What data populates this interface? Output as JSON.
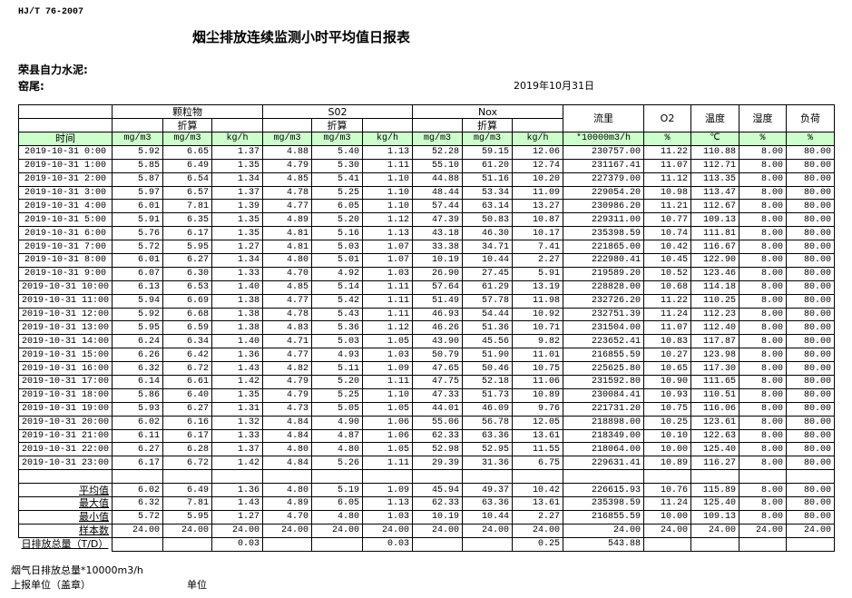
{
  "header": {
    "standard": "HJ/T  76-2007",
    "title": "烟尘排放连续监测小时平均值日报表",
    "company": "荣县自力水泥:",
    "kiln": "窑尾:",
    "date": "2019年10月31日"
  },
  "table": {
    "groups": {
      "particulate": "颗粒物",
      "so2": "S02",
      "nox": "Nox",
      "flow": "流里",
      "o2": "O2",
      "temp": "温度",
      "humidity": "湿度",
      "load": "负荷"
    },
    "converted": "折算",
    "time_label": "时间",
    "units": [
      "mg/m3",
      "mg/m3",
      "kg/h",
      "mg/m3",
      "mg/m3",
      "kg/h",
      "mg/m3",
      "mg/m3",
      "kg/h",
      "*10000m3/h",
      "%",
      "℃",
      "%",
      "%"
    ],
    "rows": [
      [
        "2019-10-31 0:00",
        "5.92",
        "6.65",
        "1.37",
        "4.88",
        "5.40",
        "1.13",
        "52.28",
        "59.15",
        "12.06",
        "230757.00",
        "11.22",
        "110.88",
        "8.00",
        "80.00"
      ],
      [
        "2019-10-31 1:00",
        "5.85",
        "6.49",
        "1.35",
        "4.79",
        "5.30",
        "1.11",
        "55.10",
        "61.20",
        "12.74",
        "231167.41",
        "11.07",
        "112.71",
        "8.00",
        "80.00"
      ],
      [
        "2019-10-31 2:00",
        "5.87",
        "6.54",
        "1.34",
        "4.85",
        "5.41",
        "1.10",
        "44.88",
        "51.16",
        "10.20",
        "227379.00",
        "11.12",
        "113.35",
        "8.00",
        "80.00"
      ],
      [
        "2019-10-31 3:00",
        "5.97",
        "6.57",
        "1.37",
        "4.78",
        "5.25",
        "1.10",
        "48.44",
        "53.34",
        "11.09",
        "229054.20",
        "10.98",
        "113.47",
        "8.00",
        "80.00"
      ],
      [
        "2019-10-31 4:00",
        "6.01",
        "7.81",
        "1.39",
        "4.77",
        "6.05",
        "1.10",
        "57.44",
        "63.14",
        "13.27",
        "230986.20",
        "11.21",
        "112.67",
        "8.00",
        "80.00"
      ],
      [
        "2019-10-31 5:00",
        "5.91",
        "6.35",
        "1.35",
        "4.89",
        "5.20",
        "1.12",
        "47.39",
        "50.83",
        "10.87",
        "229311.00",
        "10.77",
        "109.13",
        "8.00",
        "80.00"
      ],
      [
        "2019-10-31 6:00",
        "5.76",
        "6.17",
        "1.35",
        "4.81",
        "5.16",
        "1.13",
        "43.18",
        "46.30",
        "10.17",
        "235398.59",
        "10.74",
        "111.81",
        "8.00",
        "80.00"
      ],
      [
        "2019-10-31 7:00",
        "5.72",
        "5.95",
        "1.27",
        "4.81",
        "5.03",
        "1.07",
        "33.38",
        "34.71",
        "7.41",
        "221865.00",
        "10.42",
        "116.67",
        "8.00",
        "80.00"
      ],
      [
        "2019-10-31 8:00",
        "6.01",
        "6.27",
        "1.34",
        "4.80",
        "5.01",
        "1.07",
        "10.19",
        "10.44",
        "2.27",
        "222980.41",
        "10.45",
        "122.90",
        "8.00",
        "80.00"
      ],
      [
        "2019-10-31 9:00",
        "6.07",
        "6.30",
        "1.33",
        "4.70",
        "4.92",
        "1.03",
        "26.90",
        "27.45",
        "5.91",
        "219589.20",
        "10.52",
        "123.46",
        "8.00",
        "80.00"
      ],
      [
        "2019-10-31 10:00",
        "6.13",
        "6.53",
        "1.40",
        "4.85",
        "5.14",
        "1.11",
        "57.64",
        "61.29",
        "13.19",
        "228828.00",
        "10.68",
        "114.18",
        "8.00",
        "80.00"
      ],
      [
        "2019-10-31 11:00",
        "5.94",
        "6.69",
        "1.38",
        "4.77",
        "5.42",
        "1.11",
        "51.49",
        "57.78",
        "11.98",
        "232726.20",
        "11.22",
        "110.25",
        "8.00",
        "80.00"
      ],
      [
        "2019-10-31 12:00",
        "5.92",
        "6.68",
        "1.38",
        "4.78",
        "5.43",
        "1.11",
        "46.93",
        "54.44",
        "10.92",
        "232751.39",
        "11.24",
        "112.23",
        "8.00",
        "80.00"
      ],
      [
        "2019-10-31 13:00",
        "5.95",
        "6.59",
        "1.38",
        "4.83",
        "5.36",
        "1.12",
        "46.26",
        "51.36",
        "10.71",
        "231504.00",
        "11.07",
        "112.40",
        "8.00",
        "80.00"
      ],
      [
        "2019-10-31 14:00",
        "6.24",
        "6.34",
        "1.40",
        "4.71",
        "5.03",
        "1.05",
        "43.90",
        "45.56",
        "9.82",
        "223652.41",
        "10.83",
        "117.87",
        "8.00",
        "80.00"
      ],
      [
        "2019-10-31 15:00",
        "6.26",
        "6.42",
        "1.36",
        "4.77",
        "4.93",
        "1.03",
        "50.79",
        "51.90",
        "11.01",
        "216855.59",
        "10.27",
        "123.98",
        "8.00",
        "80.00"
      ],
      [
        "2019-10-31 16:00",
        "6.32",
        "6.72",
        "1.43",
        "4.82",
        "5.11",
        "1.09",
        "47.65",
        "50.46",
        "10.75",
        "225625.80",
        "10.65",
        "117.30",
        "8.00",
        "80.00"
      ],
      [
        "2019-10-31 17:00",
        "6.14",
        "6.61",
        "1.42",
        "4.79",
        "5.20",
        "1.11",
        "47.75",
        "52.18",
        "11.06",
        "231592.80",
        "10.90",
        "111.65",
        "8.00",
        "80.00"
      ],
      [
        "2019-10-31 18:00",
        "5.86",
        "6.40",
        "1.35",
        "4.79",
        "5.25",
        "1.10",
        "47.33",
        "51.73",
        "10.89",
        "230084.41",
        "10.93",
        "110.51",
        "8.00",
        "80.00"
      ],
      [
        "2019-10-31 19:00",
        "5.93",
        "6.27",
        "1.31",
        "4.73",
        "5.05",
        "1.05",
        "44.01",
        "46.09",
        "9.76",
        "221731.20",
        "10.75",
        "116.06",
        "8.00",
        "80.00"
      ],
      [
        "2019-10-31 20:00",
        "6.02",
        "6.16",
        "1.32",
        "4.84",
        "4.90",
        "1.06",
        "55.06",
        "56.78",
        "12.05",
        "218898.00",
        "10.25",
        "123.61",
        "8.00",
        "80.00"
      ],
      [
        "2019-10-31 21:00",
        "6.11",
        "6.17",
        "1.33",
        "4.84",
        "4.87",
        "1.06",
        "62.33",
        "63.36",
        "13.61",
        "218349.00",
        "10.10",
        "122.63",
        "8.00",
        "80.00"
      ],
      [
        "2019-10-31 22:00",
        "6.27",
        "6.28",
        "1.37",
        "4.80",
        "4.80",
        "1.05",
        "52.98",
        "52.95",
        "11.55",
        "218064.00",
        "10.00",
        "125.40",
        "8.00",
        "80.00"
      ],
      [
        "2019-10-31 23:00",
        "6.17",
        "6.72",
        "1.42",
        "4.84",
        "5.26",
        "1.11",
        "29.39",
        "31.36",
        "6.75",
        "229631.41",
        "10.89",
        "116.27",
        "8.00",
        "80.00"
      ]
    ],
    "summary": [
      [
        "平均值",
        "6.02",
        "6.49",
        "1.36",
        "4.80",
        "5.19",
        "1.09",
        "45.94",
        "49.37",
        "10.42",
        "226615.93",
        "10.76",
        "115.89",
        "8.00",
        "80.00"
      ],
      [
        "最大值",
        "6.32",
        "7.81",
        "1.43",
        "4.89",
        "6.05",
        "1.13",
        "62.33",
        "63.36",
        "13.61",
        "235398.59",
        "11.24",
        "125.40",
        "8.00",
        "80.00"
      ],
      [
        "最小值",
        "5.72",
        "5.95",
        "1.27",
        "4.70",
        "4.80",
        "1.03",
        "10.19",
        "10.44",
        "2.27",
        "216855.59",
        "10.00",
        "109.13",
        "8.00",
        "80.00"
      ],
      [
        "样本数",
        "24.00",
        "24.00",
        "24.00",
        "24.00",
        "24.00",
        "24.00",
        "24.00",
        "24.00",
        "24.00",
        "24.00",
        "24.00",
        "24.00",
        "24.00",
        "24.00"
      ]
    ],
    "total": [
      "日排放总量（T/D）",
      "",
      "",
      "0.03",
      "",
      "",
      "0.03",
      "",
      "",
      "0.25",
      "543.88",
      "",
      "",
      "",
      ""
    ]
  },
  "footer": {
    "flue_gas_total": "烟气日排放总量*10000m3/h",
    "reporting_unit": "上报单位（盖章）",
    "unit": "单位"
  },
  "colors": {
    "unit_row_bg": "#ccffcc"
  }
}
